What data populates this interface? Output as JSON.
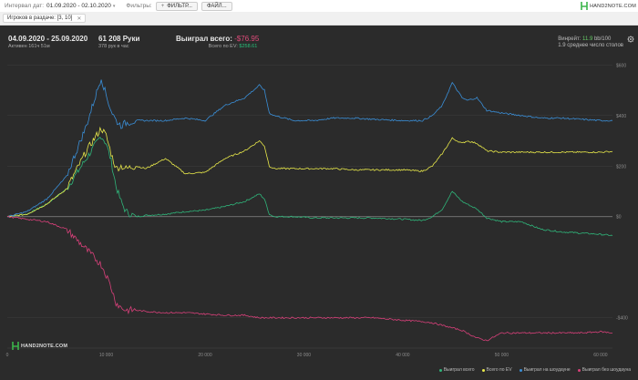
{
  "toolbar": {
    "date_label": "Интервал дат:",
    "date_value": "01.09.2020 - 02.10.2020",
    "filters_label": "Фильтры:",
    "filter_button": "ФИЛЬТР...",
    "file_button": "ФАЙЛ...",
    "brand": "HAND2NOTE.COM"
  },
  "subbar": {
    "chip_label": "Игроков в раздаче: [3, 10]"
  },
  "stats": {
    "period": "04.09.2020 - 25.09.2020",
    "active": "Активен 161ч 51м",
    "hands": "61 208 Руки",
    "hands_per_hour": "378 рук в час",
    "won_label": "Выиграл всего:",
    "won_value": "-$76.95",
    "ev_label": "Всего по EV:",
    "ev_value": "$258.61",
    "winrate_label": "Винрейт:",
    "winrate_value": "11.9",
    "winrate_unit": "bb/100",
    "avg_tables": "1.9 среднее число столов"
  },
  "watermark": "HAND2NOTE.COM",
  "colors": {
    "total": "#2fb57a",
    "ev": "#e8e84a",
    "showdown": "#3a8fd8",
    "nonshowdown": "#d8407a"
  },
  "chart_data": {
    "type": "line",
    "xlim": [
      0,
      61208
    ],
    "ylim": [
      -520,
      720
    ],
    "x_ticks": [
      0,
      10000,
      20000,
      30000,
      40000,
      50000,
      60000
    ],
    "x_tick_labels": [
      "0",
      "10 000",
      "20 000",
      "30 000",
      "40 000",
      "50 000",
      "60 000"
    ],
    "y_ticks": [
      -400,
      0,
      200,
      400,
      600
    ],
    "y_tick_labels": [
      "-$400",
      "$0",
      "$200",
      "$400",
      "$600"
    ],
    "x": [
      0,
      2000,
      4000,
      6000,
      8000,
      9500,
      10000,
      10500,
      11000,
      11500,
      12000,
      13000,
      14000,
      16000,
      18000,
      20000,
      22000,
      24000,
      25500,
      26000,
      26500,
      27000,
      29000,
      31000,
      33000,
      35000,
      37000,
      40000,
      42000,
      43000,
      44000,
      45000,
      46000,
      46500,
      47500,
      48500,
      50000,
      52000,
      54000,
      56000,
      58000,
      60000,
      61208
    ],
    "series": [
      {
        "name": "Выиграл всего",
        "values": [
          0,
          10,
          50,
          110,
          230,
          320,
          290,
          220,
          120,
          60,
          20,
          0,
          5,
          10,
          20,
          25,
          40,
          60,
          90,
          70,
          10,
          0,
          0,
          -5,
          -5,
          -5,
          -5,
          -10,
          -15,
          0,
          30,
          100,
          60,
          50,
          30,
          -5,
          -20,
          -20,
          -50,
          -60,
          -65,
          -70,
          -75
        ]
      },
      {
        "name": "Всего по EV",
        "values": [
          0,
          10,
          50,
          110,
          260,
          350,
          320,
          250,
          190,
          200,
          190,
          200,
          190,
          230,
          170,
          175,
          230,
          260,
          300,
          280,
          200,
          190,
          190,
          190,
          190,
          185,
          185,
          185,
          180,
          200,
          250,
          310,
          290,
          300,
          290,
          260,
          255,
          255,
          255,
          255,
          255,
          255,
          258
        ]
      },
      {
        "name": "Выиграл на шоудауне",
        "values": [
          0,
          20,
          70,
          160,
          360,
          550,
          480,
          420,
          380,
          360,
          370,
          380,
          380,
          380,
          390,
          380,
          440,
          470,
          520,
          500,
          410,
          400,
          380,
          380,
          390,
          390,
          385,
          380,
          380,
          400,
          440,
          530,
          470,
          460,
          470,
          420,
          410,
          400,
          390,
          390,
          385,
          380,
          380
        ]
      },
      {
        "name": "Выиграл без шоудауна",
        "values": [
          0,
          -10,
          -20,
          -50,
          -130,
          -190,
          -230,
          -280,
          -340,
          -360,
          -370,
          -370,
          -375,
          -380,
          -380,
          -385,
          -390,
          -390,
          -400,
          -400,
          -400,
          -400,
          -400,
          -400,
          -400,
          -400,
          -400,
          -410,
          -415,
          -420,
          -430,
          -440,
          -450,
          -460,
          -480,
          -490,
          -460,
          -460,
          -460,
          -460,
          -460,
          -455,
          -460
        ]
      }
    ]
  }
}
